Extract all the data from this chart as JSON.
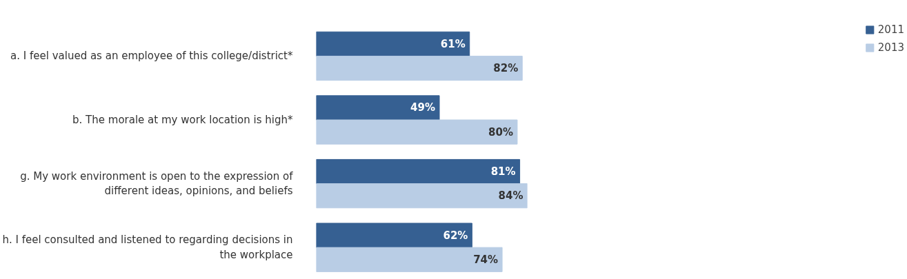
{
  "chart_data": {
    "type": "bar",
    "orientation": "horizontal",
    "categories": [
      "a. I feel valued as an employee of this college/district*",
      "b. The morale at my work location is high*",
      "g. My work environment is open to the expression of different ideas, opinions, and beliefs",
      "h. I feel consulted and listened to regarding decisions in the workplace"
    ],
    "series": [
      {
        "name": "2011",
        "color": "#366092",
        "values": [
          61,
          49,
          81,
          62
        ],
        "value_labels": [
          "61%",
          "49%",
          "81%",
          "62%"
        ]
      },
      {
        "name": "2013",
        "color": "#b9cde5",
        "values": [
          82,
          80,
          84,
          74
        ],
        "value_labels": [
          "82%",
          "80%",
          "84%",
          "74%"
        ]
      }
    ],
    "legend": "top right",
    "grid": false,
    "tick_labels": "y"
  }
}
